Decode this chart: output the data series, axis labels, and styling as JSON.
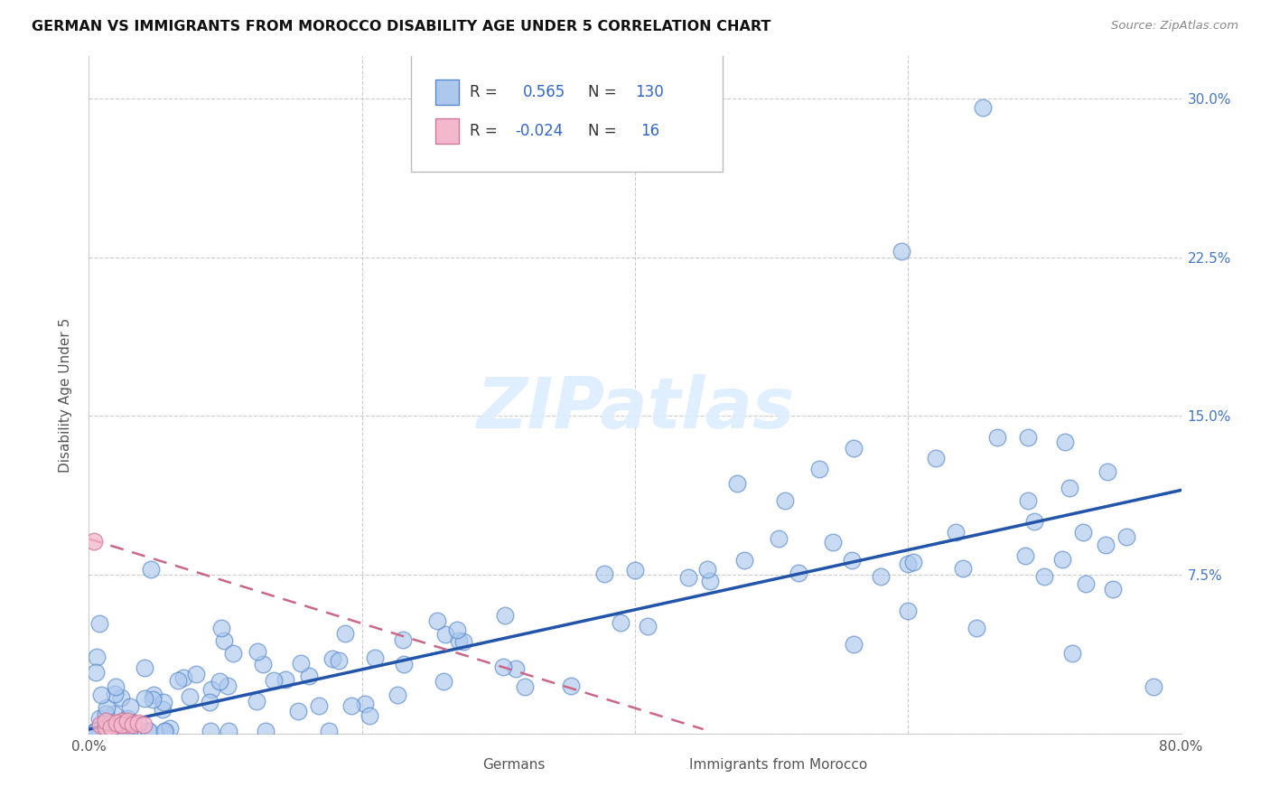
{
  "title": "GERMAN VS IMMIGRANTS FROM MOROCCO DISABILITY AGE UNDER 5 CORRELATION CHART",
  "source": "Source: ZipAtlas.com",
  "ylabel": "Disability Age Under 5",
  "xlim": [
    0.0,
    0.8
  ],
  "ylim": [
    0.0,
    0.32
  ],
  "xticks": [
    0.0,
    0.2,
    0.4,
    0.6,
    0.8
  ],
  "xticklabels": [
    "0.0%",
    "",
    "",
    "",
    "80.0%"
  ],
  "ytick_positions": [
    0.0,
    0.075,
    0.15,
    0.225,
    0.3
  ],
  "ytick_labels": [
    "",
    "7.5%",
    "15.0%",
    "22.5%",
    "30.0%"
  ],
  "grid_color": "#cccccc",
  "background_color": "#ffffff",
  "legend_R_german": "0.565",
  "legend_N_german": "130",
  "legend_R_morocco": "-0.024",
  "legend_N_morocco": "16",
  "german_color": "#adc8ed",
  "german_edge_color": "#5588cc",
  "german_line_color": "#2255aa",
  "morocco_color": "#f4b8cc",
  "morocco_edge_color": "#cc7799",
  "morocco_line_color": "#cc6688",
  "german_line_x": [
    0.0,
    0.8
  ],
  "german_line_y": [
    0.002,
    0.115
  ],
  "morocco_line_x": [
    0.0,
    0.45
  ],
  "morocco_line_y": [
    0.092,
    0.002
  ]
}
